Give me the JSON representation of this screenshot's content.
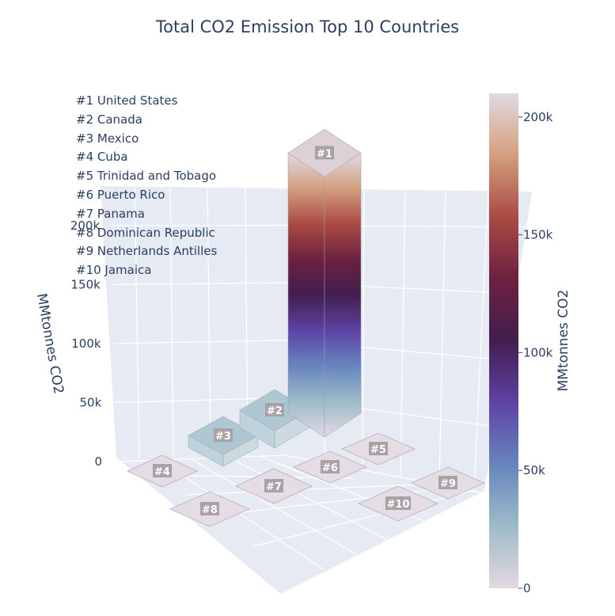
{
  "chart_data": {
    "type": "bar",
    "title": "Total CO2 Emission Top 10 Countries",
    "zlabel": "MMtonnes CO2",
    "zlim": [
      0,
      210000
    ],
    "z_ticks": [
      "0",
      "50k",
      "100k",
      "150k",
      "200k"
    ],
    "categories": [
      "#1",
      "#2",
      "#3",
      "#4",
      "#5",
      "#6",
      "#7",
      "#8",
      "#9",
      "#10"
    ],
    "countries": [
      "United States",
      "Canada",
      "Mexico",
      "Cuba",
      "Trinidad and Tobago",
      "Puerto Rico",
      "Panama",
      "Dominican Republic",
      "Netherlands Antilles",
      "Jamaica"
    ],
    "values": [
      210000,
      14000,
      9500,
      0,
      0,
      0,
      0,
      0,
      0,
      0
    ],
    "legend_entries": [
      "#1 United States",
      "#2 Canada",
      "#3 Mexico",
      "#4 Cuba",
      "#5 Trinidad and Tobago",
      "#6 Puerto Rico",
      "#7 Panama",
      "#8 Dominican Republic",
      "#9 Netherlands Antilles",
      "#10 Jamaica"
    ],
    "colorbar": {
      "title": "MMtonnes CO2",
      "tick_values": [
        0,
        50000,
        100000,
        150000,
        200000
      ],
      "tick_labels": [
        "0",
        "50k",
        "100k",
        "150k",
        "200k"
      ],
      "range": [
        0,
        210000
      ],
      "colorscale": [
        "#e2d9e2",
        "#9ebbc9",
        "#6785be",
        "#5e43a5",
        "#421e4f",
        "#6d2140",
        "#aa4a44",
        "#d49f7e",
        "#e2d9e2"
      ]
    }
  }
}
